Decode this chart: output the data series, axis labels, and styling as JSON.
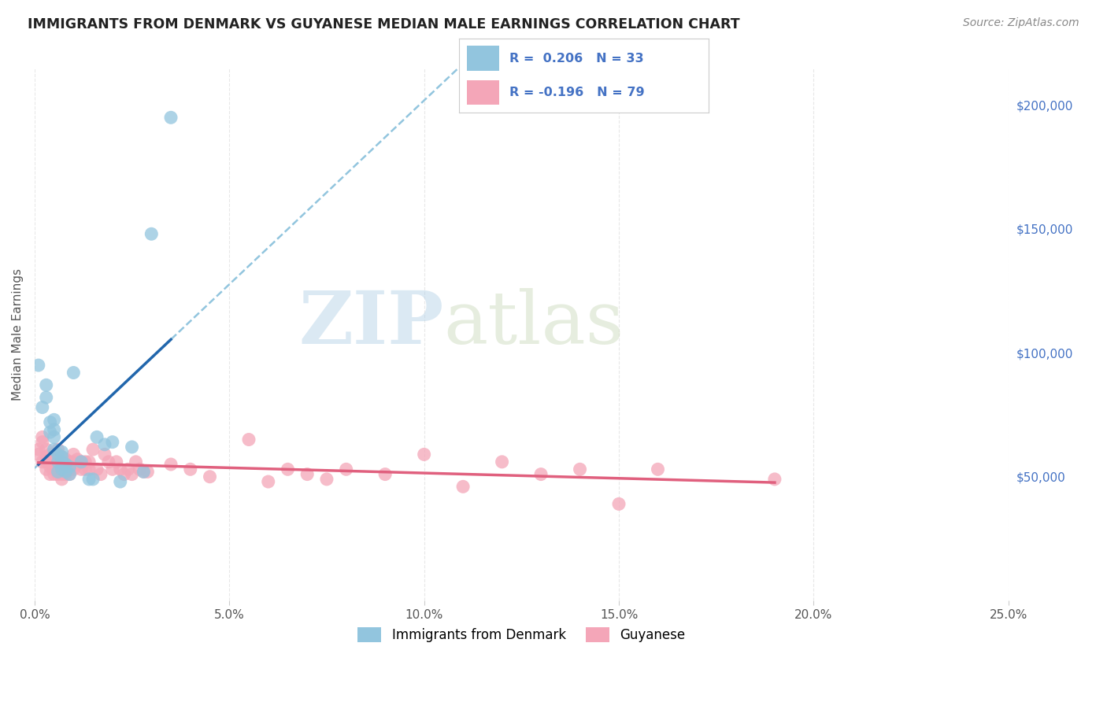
{
  "title": "IMMIGRANTS FROM DENMARK VS GUYANESE MEDIAN MALE EARNINGS CORRELATION CHART",
  "source": "Source: ZipAtlas.com",
  "ylabel": "Median Male Earnings",
  "legend_label_1": "Immigrants from Denmark",
  "legend_label_2": "Guyanese",
  "blue_color": "#92c5de",
  "pink_color": "#f4a6b8",
  "trendline_blue_color": "#2166ac",
  "trendline_pink_color": "#e0607e",
  "trendline_dashed_color": "#92c5de",
  "watermark_zip": "ZIP",
  "watermark_atlas": "atlas",
  "denmark_x": [
    0.001,
    0.002,
    0.003,
    0.003,
    0.004,
    0.004,
    0.005,
    0.005,
    0.005,
    0.005,
    0.006,
    0.006,
    0.006,
    0.007,
    0.007,
    0.007,
    0.007,
    0.008,
    0.008,
    0.009,
    0.009,
    0.01,
    0.012,
    0.014,
    0.015,
    0.016,
    0.018,
    0.02,
    0.022,
    0.025,
    0.028,
    0.03,
    0.035
  ],
  "denmark_y": [
    95000,
    78000,
    82000,
    87000,
    68000,
    72000,
    66000,
    73000,
    61000,
    69000,
    56000,
    59000,
    52000,
    53000,
    56000,
    58000,
    60000,
    52000,
    55000,
    51000,
    54000,
    92000,
    56000,
    49000,
    49000,
    66000,
    63000,
    64000,
    48000,
    62000,
    52000,
    148000,
    195000
  ],
  "guyanese_x": [
    0.001,
    0.001,
    0.002,
    0.002,
    0.002,
    0.003,
    0.003,
    0.003,
    0.003,
    0.004,
    0.004,
    0.004,
    0.004,
    0.005,
    0.005,
    0.005,
    0.005,
    0.006,
    0.006,
    0.006,
    0.006,
    0.006,
    0.007,
    0.007,
    0.007,
    0.007,
    0.007,
    0.008,
    0.008,
    0.008,
    0.008,
    0.009,
    0.009,
    0.009,
    0.01,
    0.01,
    0.01,
    0.011,
    0.011,
    0.012,
    0.012,
    0.013,
    0.013,
    0.014,
    0.014,
    0.015,
    0.016,
    0.017,
    0.018,
    0.019,
    0.02,
    0.021,
    0.022,
    0.023,
    0.024,
    0.025,
    0.026,
    0.027,
    0.028,
    0.029,
    0.035,
    0.04,
    0.045,
    0.055,
    0.06,
    0.065,
    0.07,
    0.075,
    0.08,
    0.09,
    0.1,
    0.11,
    0.12,
    0.13,
    0.14,
    0.15,
    0.16,
    0.19
  ],
  "guyanese_y": [
    61000,
    59000,
    66000,
    64000,
    56000,
    61000,
    58000,
    56000,
    53000,
    59000,
    56000,
    54000,
    51000,
    59000,
    56000,
    53000,
    51000,
    61000,
    59000,
    56000,
    53000,
    51000,
    58000,
    56000,
    53000,
    51000,
    49000,
    57000,
    55000,
    53000,
    51000,
    56000,
    53000,
    51000,
    59000,
    56000,
    53000,
    57000,
    55000,
    56000,
    53000,
    56000,
    53000,
    56000,
    53000,
    61000,
    53000,
    51000,
    59000,
    56000,
    53000,
    56000,
    53000,
    51000,
    53000,
    51000,
    56000,
    53000,
    52000,
    52000,
    55000,
    53000,
    50000,
    65000,
    48000,
    53000,
    51000,
    49000,
    53000,
    51000,
    59000,
    46000,
    56000,
    51000,
    53000,
    39000,
    53000,
    49000
  ],
  "xlim": [
    0.0,
    0.25
  ],
  "ylim": [
    0,
    215000
  ],
  "background_color": "#ffffff",
  "grid_color": "#e8e8e8"
}
